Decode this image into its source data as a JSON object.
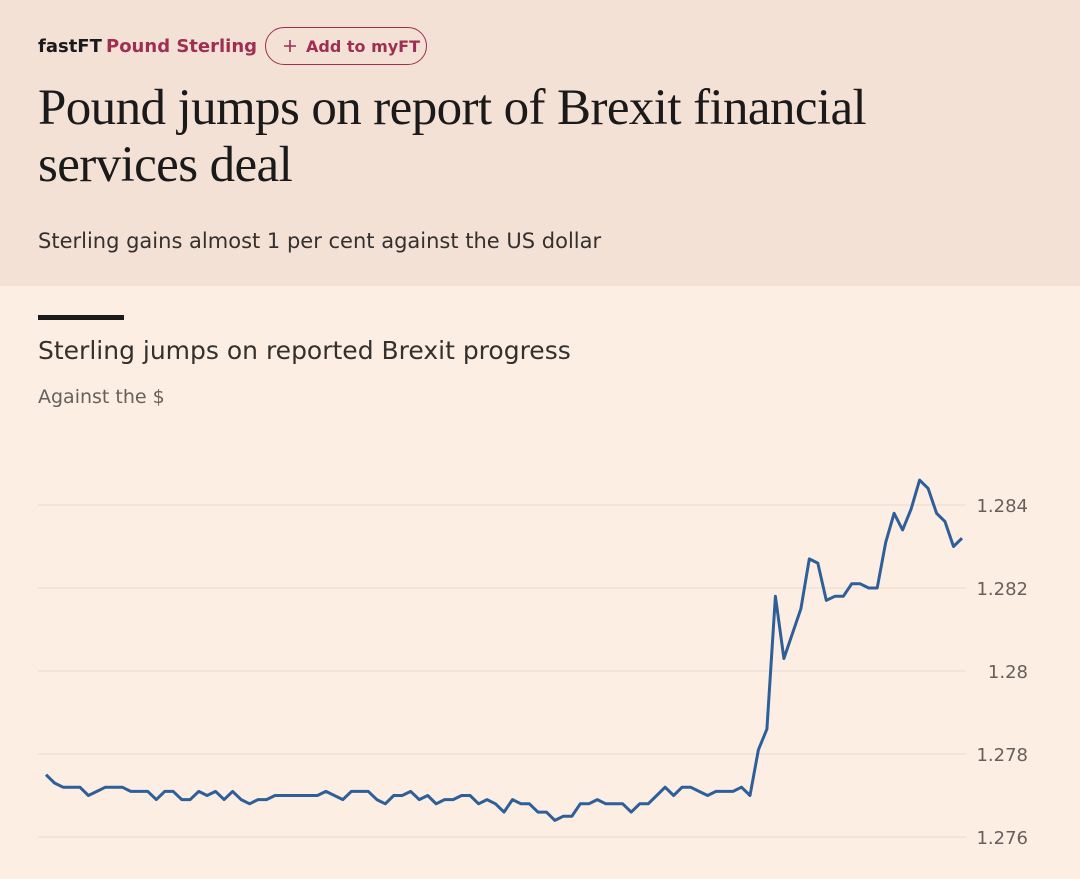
{
  "header": {
    "section": "fastFT",
    "topic": "Pound Sterling",
    "button": "Add to myFT",
    "title": "Pound jumps on report of Brexit financial services deal",
    "standfirst": "Sterling gains almost 1 per cent against the US dollar"
  },
  "chart_data": {
    "type": "line",
    "title": "Sterling jumps on reported Brexit progress",
    "subtitle": "Against the $",
    "color": "#2e5f99",
    "grid": true,
    "ylim": [
      1.275,
      1.285
    ],
    "yticks": [
      1.276,
      1.278,
      1.28,
      1.282,
      1.284
    ],
    "values": [
      1.2775,
      1.2773,
      1.2772,
      1.2772,
      1.2772,
      1.277,
      1.2771,
      1.2772,
      1.2772,
      1.2772,
      1.2771,
      1.2771,
      1.2771,
      1.2769,
      1.2771,
      1.2771,
      1.2769,
      1.2769,
      1.2771,
      1.277,
      1.2771,
      1.2769,
      1.2771,
      1.2769,
      1.2768,
      1.2769,
      1.2769,
      1.277,
      1.277,
      1.277,
      1.277,
      1.277,
      1.277,
      1.2771,
      1.277,
      1.2769,
      1.2771,
      1.2771,
      1.2771,
      1.2769,
      1.2768,
      1.277,
      1.277,
      1.2771,
      1.2769,
      1.277,
      1.2768,
      1.2769,
      1.2769,
      1.277,
      1.277,
      1.2768,
      1.2769,
      1.2768,
      1.2766,
      1.2769,
      1.2768,
      1.2768,
      1.2766,
      1.2766,
      1.2764,
      1.2765,
      1.2765,
      1.2768,
      1.2768,
      1.2769,
      1.2768,
      1.2768,
      1.2768,
      1.2766,
      1.2768,
      1.2768,
      1.277,
      1.2772,
      1.277,
      1.2772,
      1.2772,
      1.2771,
      1.277,
      1.2771,
      1.2771,
      1.2771,
      1.2772,
      1.277,
      1.2781,
      1.2786,
      1.2818,
      1.2803,
      1.2809,
      1.2815,
      1.2827,
      1.2826,
      1.2817,
      1.2818,
      1.2818,
      1.2821,
      1.2821,
      1.282,
      1.282,
      1.2831,
      1.2838,
      1.2834,
      1.2839,
      1.2846,
      1.2844,
      1.2838,
      1.2836,
      1.283,
      1.2832
    ]
  }
}
